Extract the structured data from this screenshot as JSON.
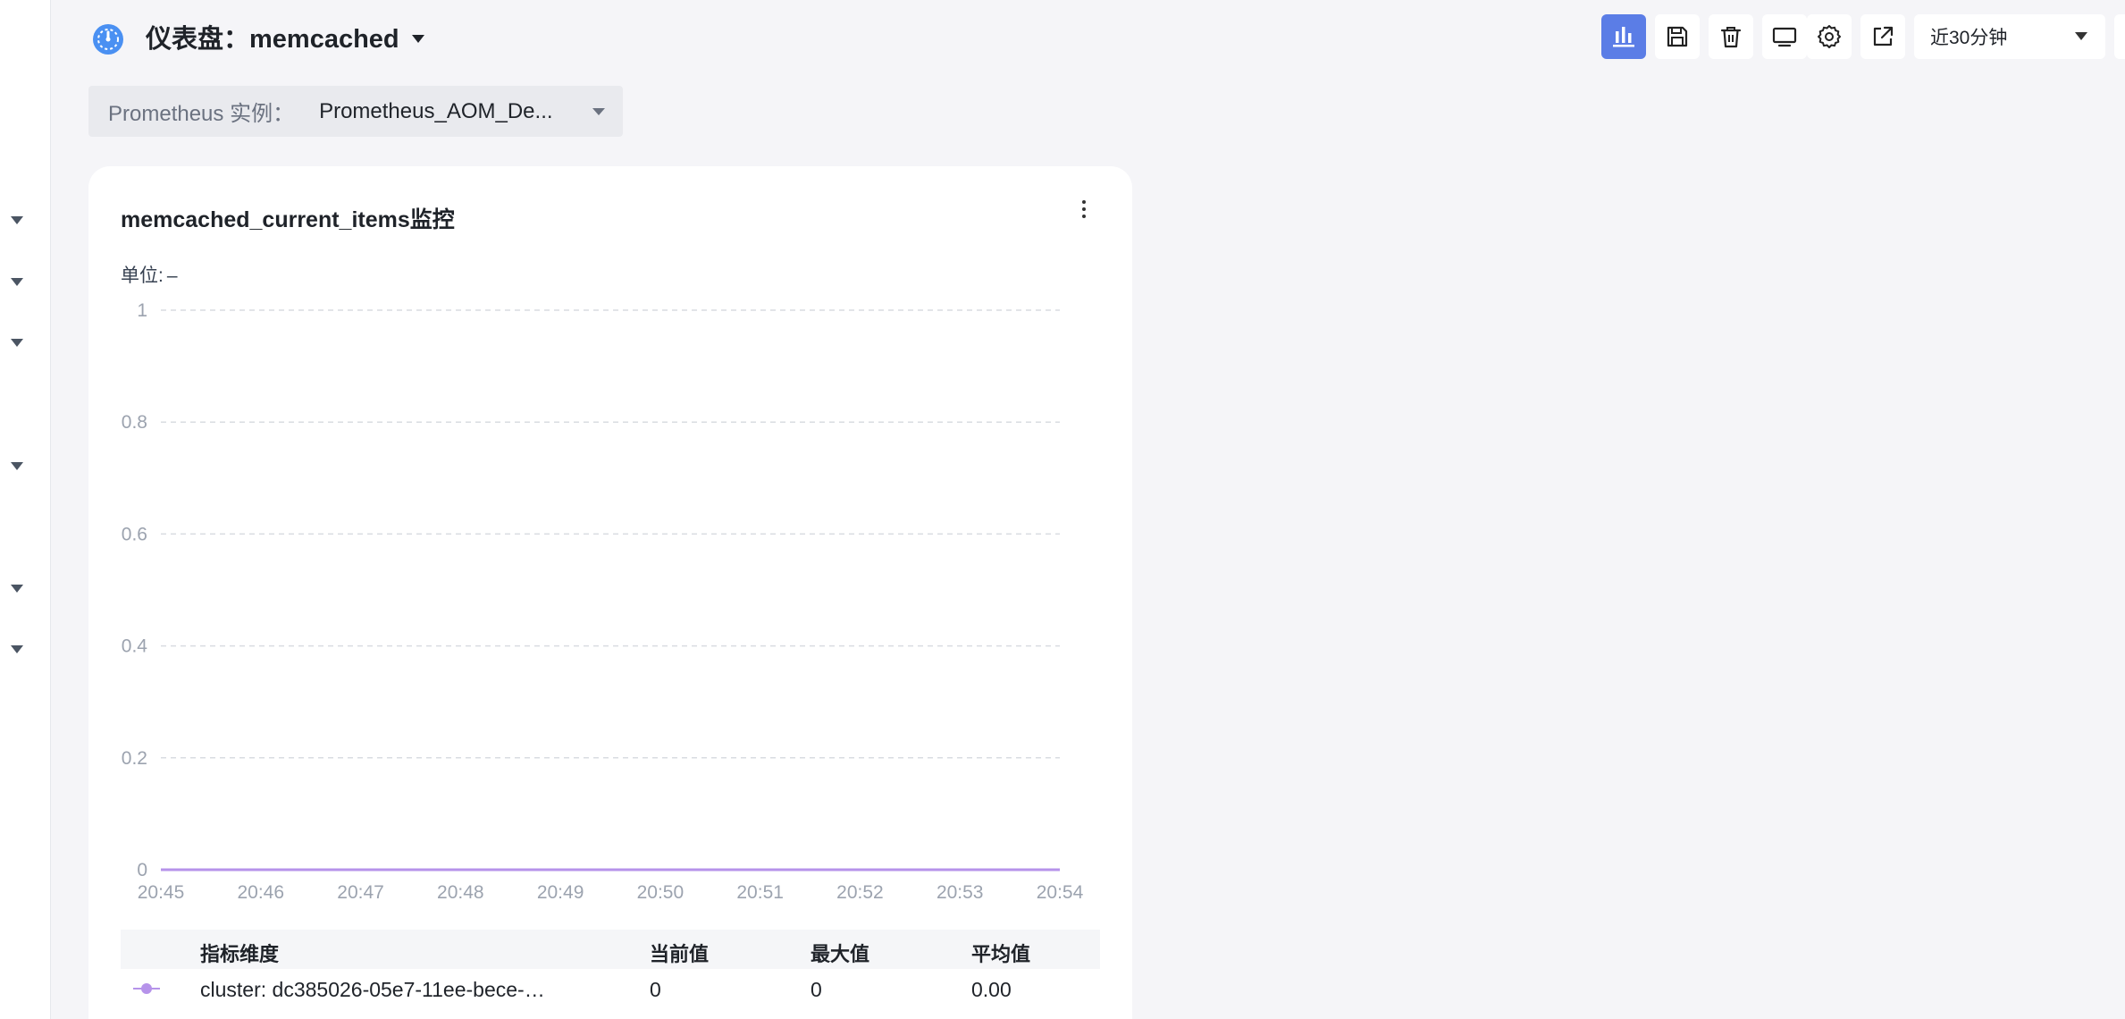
{
  "header": {
    "title": "仪表盘：memcached",
    "icon": "dashboard-gauge-icon"
  },
  "toolbar": {
    "buttons": [
      {
        "name": "chart-view",
        "icon": "bar-chart-icon",
        "active": true
      },
      {
        "name": "save",
        "icon": "save-icon"
      },
      {
        "name": "delete",
        "icon": "trash-icon"
      },
      {
        "name": "fullscreen",
        "icon": "monitor-icon"
      },
      {
        "name": "settings",
        "icon": "gear-icon"
      },
      {
        "name": "share",
        "icon": "external-link-icon"
      }
    ],
    "time_range": "近30分钟",
    "accent": "#5b7de6"
  },
  "instance": {
    "label": "Prometheus 实例：",
    "value": "Prometheus_AOM_De..."
  },
  "panel": {
    "title": "memcached_current_items监控",
    "unit_label": "单位:",
    "unit_value": "–"
  },
  "chart_data": {
    "type": "line",
    "x": [
      "20:45",
      "20:46",
      "20:47",
      "20:48",
      "20:49",
      "20:50",
      "20:51",
      "20:52",
      "20:53",
      "20:54"
    ],
    "yticks": [
      "0",
      "0.2",
      "0.4",
      "0.6",
      "0.8",
      "1"
    ],
    "ylim": [
      0,
      1
    ],
    "series": [
      {
        "values": [
          0,
          0,
          0,
          0,
          0,
          0,
          0,
          0,
          0,
          0
        ],
        "color": "#b693ea"
      }
    ],
    "grid": true
  },
  "legend_table": {
    "headers": [
      "指标维度",
      "当前值",
      "最大值",
      "平均值"
    ],
    "rows": [
      {
        "dimension": "cluster: dc385026-05e7-11ee-bece-…",
        "current": "0",
        "max": "0",
        "avg": "0.00",
        "color": "#b693ea"
      }
    ]
  }
}
